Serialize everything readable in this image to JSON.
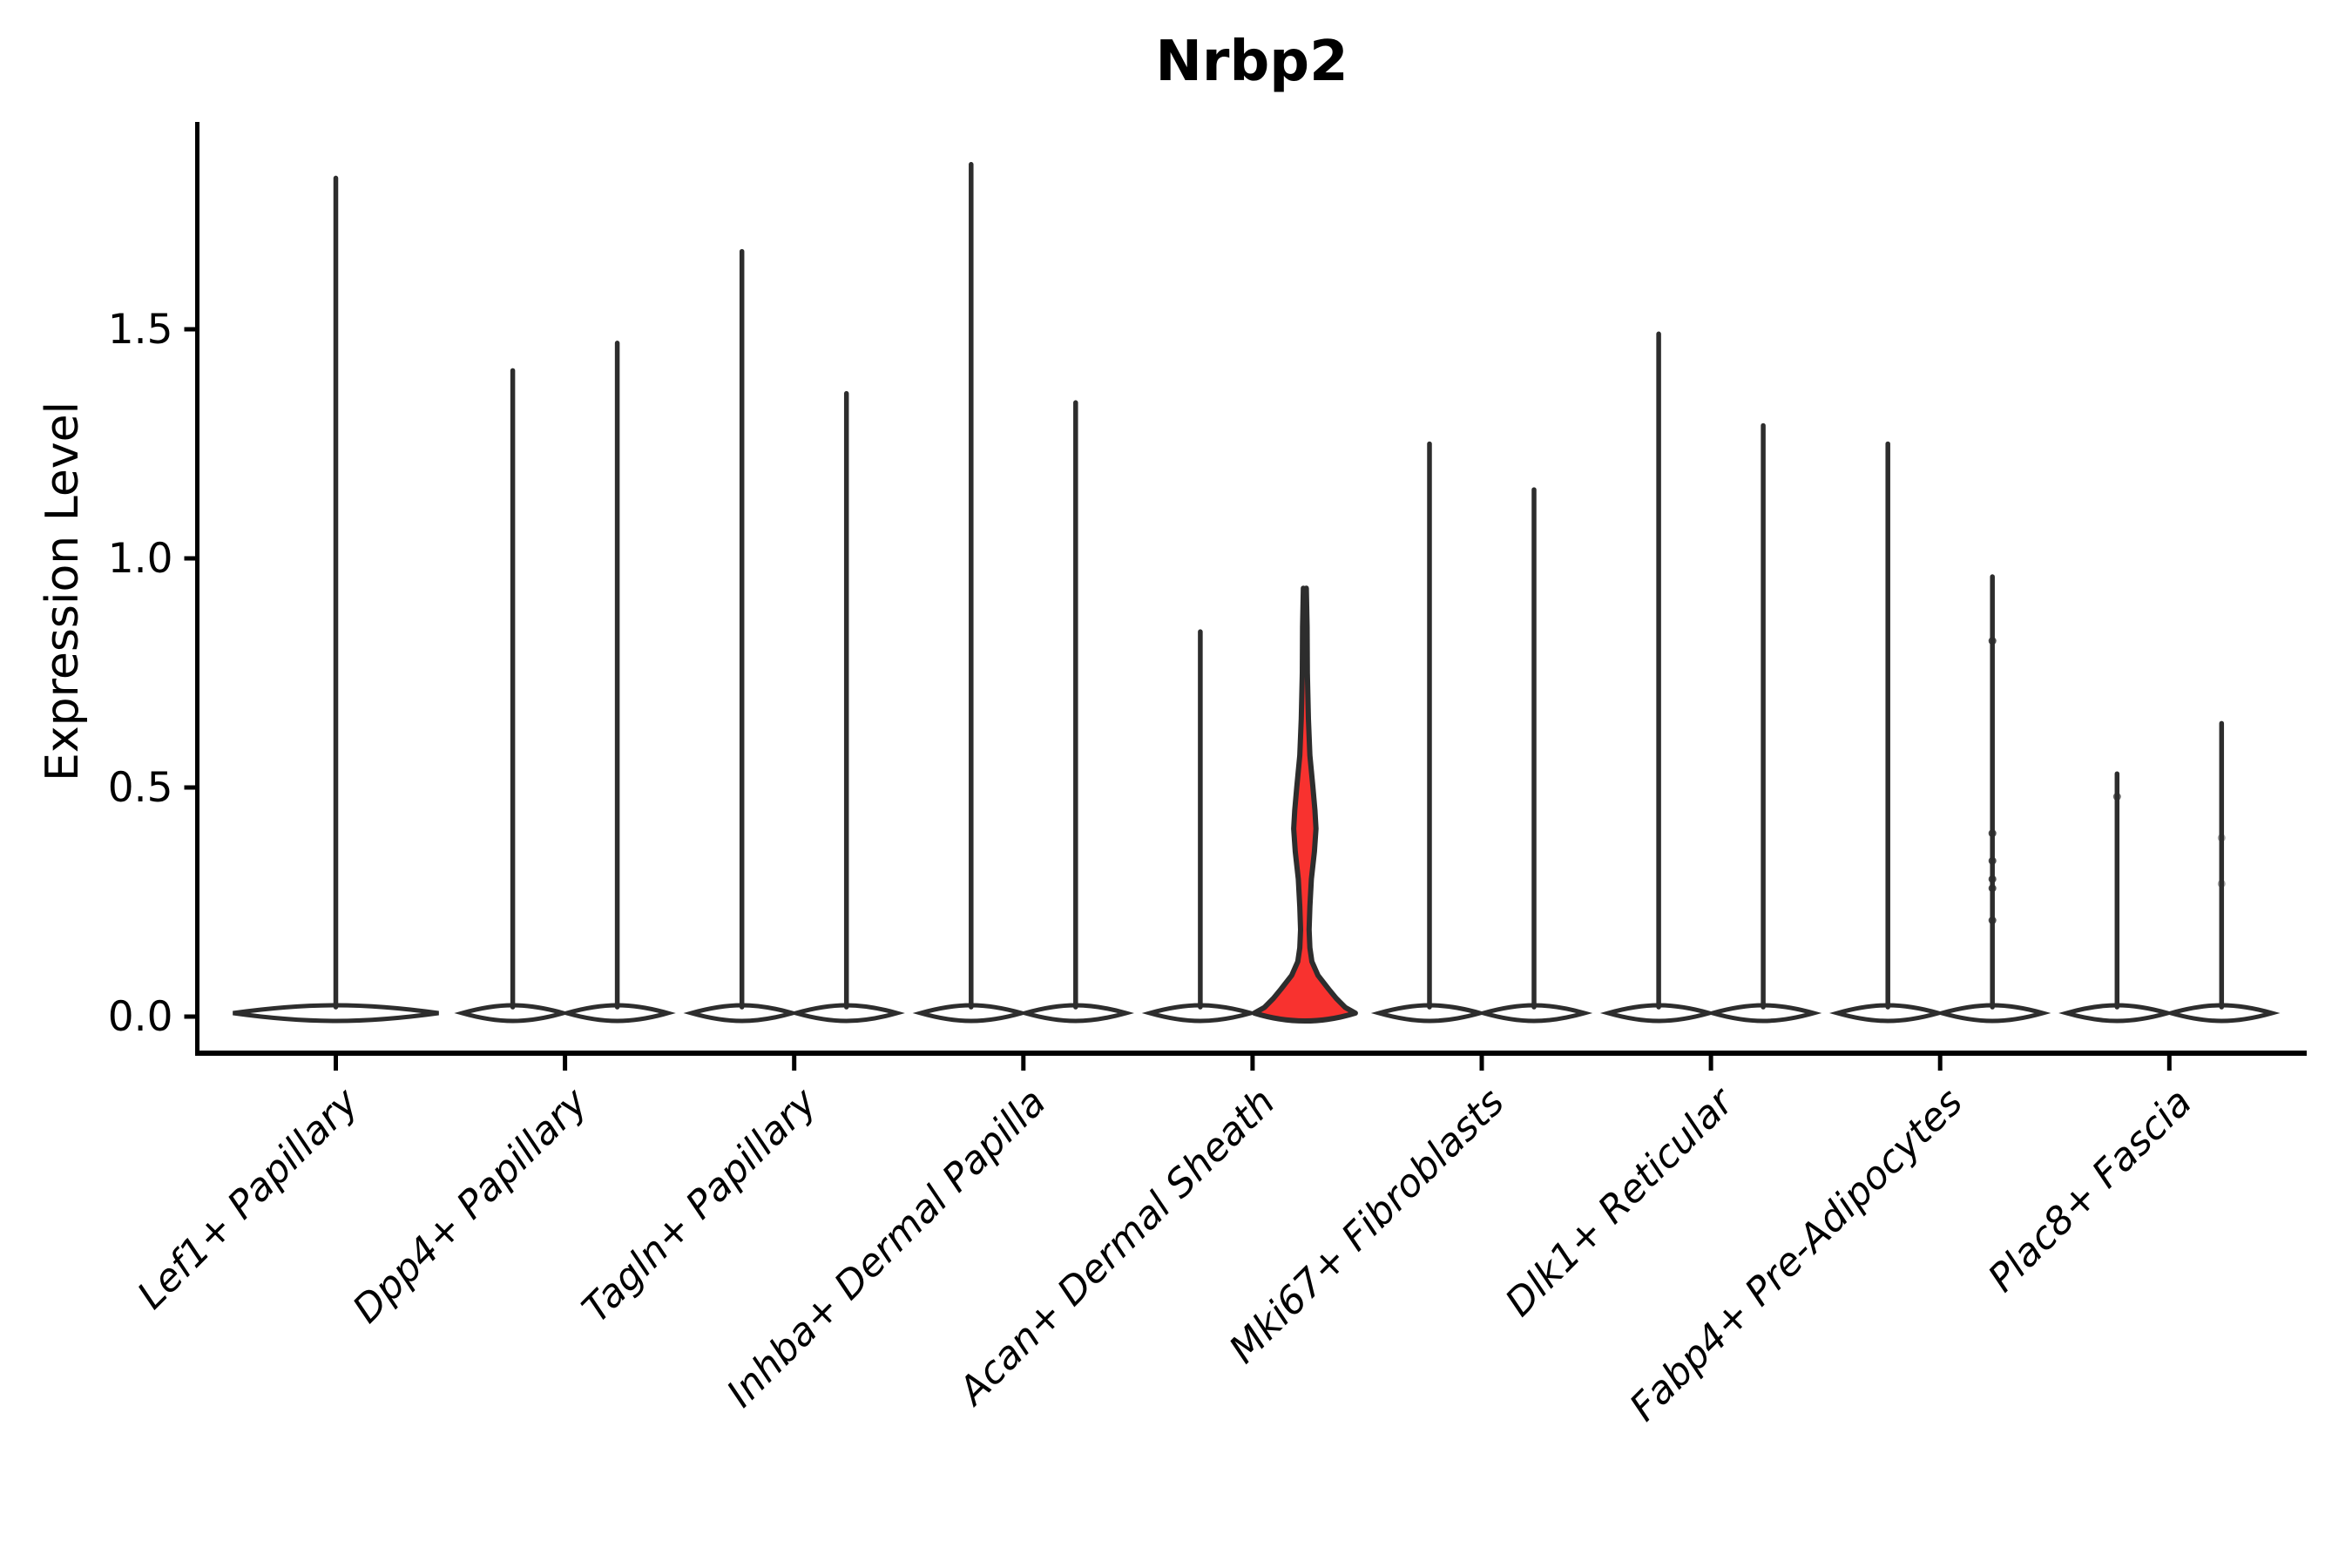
{
  "title": "Nrbp2",
  "chart_data": {
    "type": "violin",
    "title": "Nrbp2",
    "ylabel": "Expression Level",
    "xlabel": "",
    "ylim": [
      -0.07,
      1.95
    ],
    "y_ticks": [
      0.0,
      0.5,
      1.0,
      1.5
    ],
    "y_tick_labels": [
      "0.0",
      "0.5",
      "1.0",
      "1.5"
    ],
    "x_tick_rotation": 45,
    "grid": false,
    "legend": null,
    "categories": [
      "Lef1+ Papillary",
      "Dpp4+ Papillary",
      "Tagln+ Papillary",
      "Inhba+ Dermal Papilla",
      "Acan+ Dermal Sheath",
      "Mki67+ Fibroblasts",
      "Dlk1+ Reticular",
      "Fabp4+ Pre-Adipocytes",
      "Plac8+ Fascia"
    ],
    "violin_edge_color": "#2d2d2d",
    "violin_fill_default": "#ffffff",
    "highlight_fill": "#f8322f",
    "spine_color": "#000000",
    "violins": [
      {
        "category": "Lef1+ Papillary",
        "slot": "full",
        "max": 1.83,
        "highlight": false
      },
      {
        "category": "Dpp4+ Papillary",
        "slot": "left",
        "max": 1.41,
        "highlight": false
      },
      {
        "category": "Dpp4+ Papillary",
        "slot": "right",
        "max": 1.47,
        "highlight": false
      },
      {
        "category": "Tagln+ Papillary",
        "slot": "left",
        "max": 1.67,
        "highlight": false
      },
      {
        "category": "Tagln+ Papillary",
        "slot": "right",
        "max": 1.36,
        "highlight": false
      },
      {
        "category": "Inhba+ Dermal Papilla",
        "slot": "left",
        "max": 1.86,
        "highlight": false
      },
      {
        "category": "Inhba+ Dermal Papilla",
        "slot": "right",
        "max": 1.34,
        "highlight": false
      },
      {
        "category": "Acan+ Dermal Sheath",
        "slot": "left",
        "max": 0.84,
        "highlight": false
      },
      {
        "category": "Acan+ Dermal Sheath",
        "slot": "right",
        "max": 0.93,
        "highlight": true
      },
      {
        "category": "Mki67+ Fibroblasts",
        "slot": "left",
        "max": 1.25,
        "highlight": false
      },
      {
        "category": "Mki67+ Fibroblasts",
        "slot": "right",
        "max": 1.15,
        "highlight": false
      },
      {
        "category": "Dlk1+ Reticular",
        "slot": "left",
        "max": 1.49,
        "highlight": false
      },
      {
        "category": "Dlk1+ Reticular",
        "slot": "right",
        "max": 1.29,
        "highlight": false
      },
      {
        "category": "Fabp4+ Pre-Adipocytes",
        "slot": "left",
        "max": 1.25,
        "highlight": false
      },
      {
        "category": "Fabp4+ Pre-Adipocytes",
        "slot": "right",
        "max": 0.96,
        "highlight": false,
        "points": [
          0.82,
          0.4,
          0.34,
          0.3,
          0.28,
          0.21
        ],
        "points_opacity": 0.85
      },
      {
        "category": "Plac8+ Fascia",
        "slot": "left",
        "max": 0.53,
        "highlight": false,
        "points": [
          0.48
        ],
        "points_opacity": 0.7
      },
      {
        "category": "Plac8+ Fascia",
        "slot": "right",
        "max": 0.64,
        "highlight": false,
        "points": [
          0.39,
          0.29
        ],
        "points_opacity": 0.4
      }
    ],
    "highlight_profile": [
      [
        0.935,
        0.03
      ],
      [
        0.85,
        0.045
      ],
      [
        0.75,
        0.05
      ],
      [
        0.65,
        0.07
      ],
      [
        0.57,
        0.1
      ],
      [
        0.5,
        0.16
      ],
      [
        0.45,
        0.2
      ],
      [
        0.41,
        0.22
      ],
      [
        0.36,
        0.19
      ],
      [
        0.3,
        0.13
      ],
      [
        0.24,
        0.1
      ],
      [
        0.19,
        0.085
      ],
      [
        0.15,
        0.1
      ],
      [
        0.12,
        0.14
      ],
      [
        0.09,
        0.26
      ],
      [
        0.06,
        0.47
      ],
      [
        0.04,
        0.62
      ],
      [
        0.02,
        0.8
      ],
      [
        0.0,
        1.0
      ]
    ]
  }
}
